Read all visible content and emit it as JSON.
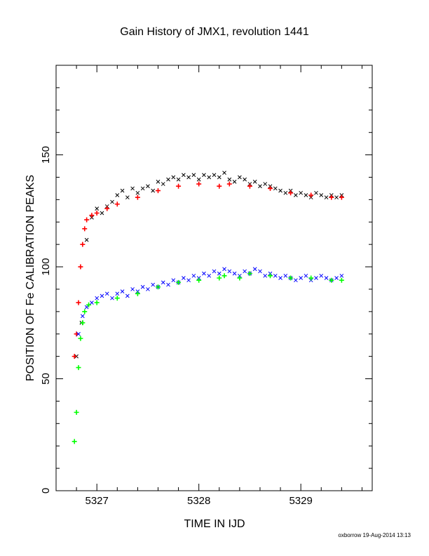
{
  "chart_data": {
    "type": "scatter",
    "title": "Gain History of JMX1, revolution 1441",
    "xlabel": "TIME IN IJD",
    "ylabel": "POSITION OF Fe CALIBRATION PEAKS",
    "xlim": [
      5326.6,
      5329.7
    ],
    "ylim": [
      0,
      190
    ],
    "xticks": [
      5327,
      5328,
      5329
    ],
    "xtick_labels": [
      "5327",
      "5328",
      "5329"
    ],
    "yticks": [
      0,
      50,
      100,
      150
    ],
    "ytick_labels": [
      "0",
      "50",
      "100",
      "150"
    ],
    "grid": false,
    "legend": "none",
    "series": [
      {
        "marker": "x",
        "color": "#000000",
        "x": [
          5326.8,
          5326.85,
          5326.9,
          5326.95,
          5327.0,
          5327.05,
          5327.1,
          5327.15,
          5327.2,
          5327.25,
          5327.3,
          5327.35,
          5327.4,
          5327.45,
          5327.5,
          5327.55,
          5327.6,
          5327.65,
          5327.7,
          5327.75,
          5327.8,
          5327.85,
          5327.9,
          5327.95,
          5328.0,
          5328.05,
          5328.1,
          5328.15,
          5328.2,
          5328.25,
          5328.3,
          5328.35,
          5328.4,
          5328.45,
          5328.5,
          5328.55,
          5328.6,
          5328.65,
          5328.7,
          5328.75,
          5328.8,
          5328.85,
          5328.9,
          5328.95,
          5329.0,
          5329.05,
          5329.1,
          5329.15,
          5329.2,
          5329.25,
          5329.3,
          5329.35,
          5329.4
        ],
        "y": [
          60,
          75,
          112,
          122,
          126,
          124,
          127,
          129,
          132,
          134,
          131,
          135,
          133,
          135,
          136,
          134,
          138,
          137,
          139,
          140,
          139,
          141,
          140,
          141,
          139,
          141,
          140,
          141,
          140,
          142,
          139,
          138,
          140,
          139,
          137,
          138,
          136,
          137,
          136,
          135,
          134,
          133,
          134,
          132,
          133,
          132,
          131,
          133,
          132,
          131,
          132,
          131,
          132
        ]
      },
      {
        "marker": "+",
        "color": "#ff0000",
        "x": [
          5326.78,
          5326.8,
          5326.82,
          5326.84,
          5326.86,
          5326.88,
          5326.9,
          5326.95,
          5327.0,
          5327.1,
          5327.2,
          5327.4,
          5327.6,
          5327.8,
          5328.0,
          5328.2,
          5328.3,
          5328.5,
          5328.7,
          5328.9,
          5329.1,
          5329.3,
          5329.4
        ],
        "y": [
          60,
          70,
          84,
          100,
          110,
          117,
          121,
          123,
          124,
          126,
          128,
          131,
          134,
          136,
          137,
          136,
          137,
          136,
          135,
          133,
          132,
          131,
          131
        ]
      },
      {
        "marker": "x",
        "color": "#0000ff",
        "x": [
          5326.82,
          5326.86,
          5326.9,
          5326.95,
          5327.0,
          5327.05,
          5327.1,
          5327.15,
          5327.2,
          5327.25,
          5327.3,
          5327.35,
          5327.4,
          5327.45,
          5327.5,
          5327.55,
          5327.6,
          5327.65,
          5327.7,
          5327.75,
          5327.8,
          5327.85,
          5327.9,
          5327.95,
          5328.0,
          5328.05,
          5328.1,
          5328.15,
          5328.2,
          5328.25,
          5328.3,
          5328.35,
          5328.4,
          5328.45,
          5328.5,
          5328.55,
          5328.6,
          5328.65,
          5328.7,
          5328.75,
          5328.8,
          5328.85,
          5328.9,
          5328.95,
          5329.0,
          5329.05,
          5329.1,
          5329.15,
          5329.2,
          5329.25,
          5329.3,
          5329.35,
          5329.4
        ],
        "y": [
          70,
          78,
          82,
          84,
          86,
          87,
          88,
          86,
          88,
          89,
          87,
          90,
          89,
          91,
          90,
          92,
          91,
          93,
          92,
          94,
          93,
          95,
          94,
          96,
          95,
          97,
          96,
          98,
          97,
          99,
          98,
          97,
          96,
          98,
          97,
          99,
          98,
          96,
          97,
          96,
          95,
          96,
          95,
          94,
          95,
          96,
          94,
          95,
          96,
          95,
          94,
          95,
          96
        ]
      },
      {
        "marker": "+",
        "color": "#00ff00",
        "x": [
          5326.78,
          5326.8,
          5326.82,
          5326.84,
          5326.86,
          5326.88,
          5326.92,
          5327.0,
          5327.2,
          5327.4,
          5327.6,
          5327.8,
          5328.0,
          5328.2,
          5328.25,
          5328.4,
          5328.5,
          5328.7,
          5328.9,
          5329.1,
          5329.3,
          5329.4
        ],
        "y": [
          22,
          35,
          55,
          68,
          75,
          80,
          83,
          84,
          86,
          88,
          91,
          93,
          94,
          95,
          96,
          95,
          97,
          96,
          95,
          95,
          94,
          94
        ]
      }
    ]
  },
  "footer": "oxborrow 19-Aug-2014 13:13"
}
